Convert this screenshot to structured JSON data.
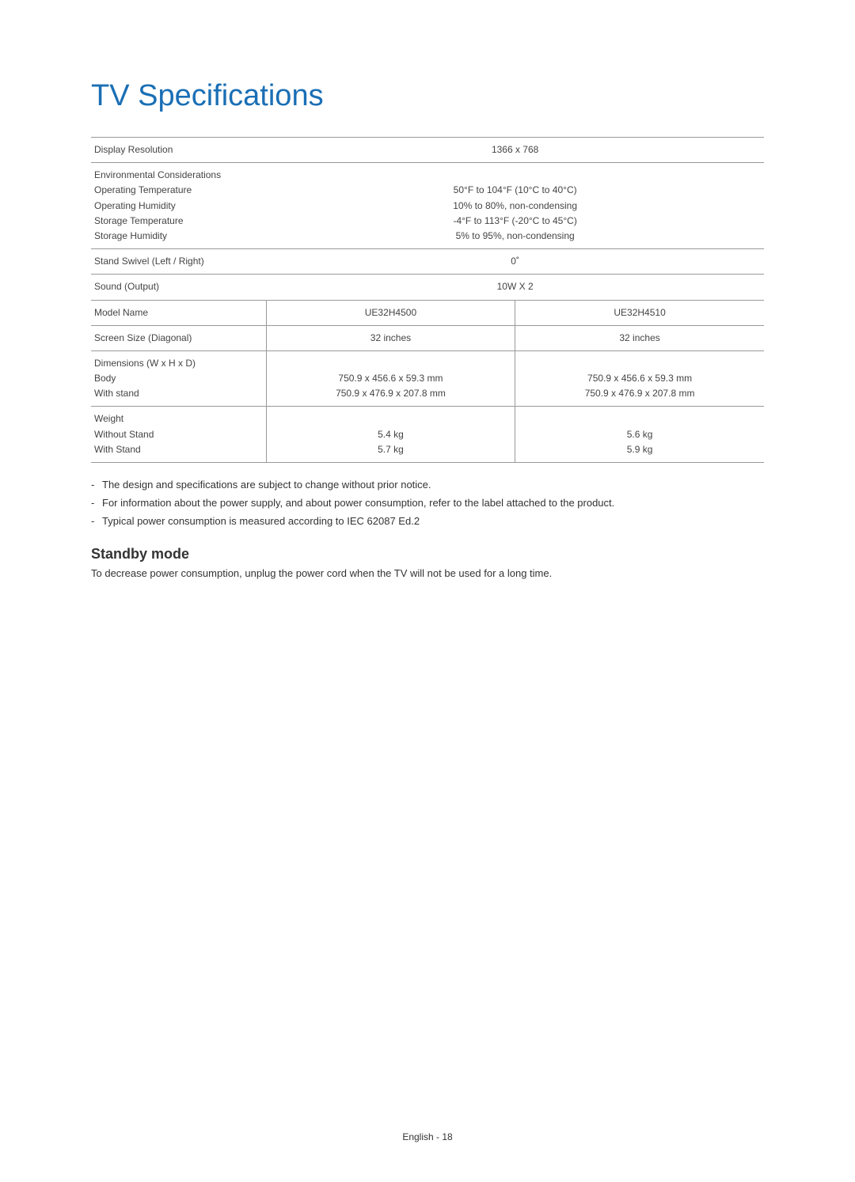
{
  "title": "TV Specifications",
  "table": {
    "rows": [
      {
        "type": "single",
        "label": "Display Resolution",
        "value": "1366 x 768"
      },
      {
        "type": "env",
        "labels": [
          "Environmental Considerations",
          "Operating Temperature",
          "Operating Humidity",
          "Storage Temperature",
          "Storage Humidity"
        ],
        "values": [
          "",
          "50°F to 104°F (10°C to 40°C)",
          "10% to 80%, non-condensing",
          "-4°F to 113°F (-20°C to 45°C)",
          "5% to 95%, non-condensing"
        ]
      },
      {
        "type": "single",
        "label": "Stand Swivel (Left / Right)",
        "value": "0˚"
      },
      {
        "type": "single",
        "label": "Sound (Output)",
        "value": "10W X 2"
      },
      {
        "type": "double",
        "label": "Model Name",
        "value1": "UE32H4500",
        "value2": "UE32H4510"
      },
      {
        "type": "double",
        "label": "Screen Size (Diagonal)",
        "value1": "32 inches",
        "value2": "32 inches"
      },
      {
        "type": "double-multi",
        "labels": [
          "Dimensions (W x H x D)",
          "Body",
          "With stand"
        ],
        "values1": [
          "",
          "750.9 x 456.6 x 59.3 mm",
          "750.9 x 476.9 x 207.8 mm"
        ],
        "values2": [
          "",
          "750.9 x 456.6 x 59.3 mm",
          "750.9 x 476.9 x 207.8 mm"
        ]
      },
      {
        "type": "double-multi",
        "labels": [
          "Weight",
          "Without Stand",
          "With Stand"
        ],
        "values1": [
          "",
          "5.4 kg",
          "5.7 kg"
        ],
        "values2": [
          "",
          "5.6 kg",
          "5.9 kg"
        ]
      }
    ]
  },
  "notes": [
    "The design and specifications are subject to change without prior notice.",
    "For information about the power supply, and about power consumption, refer to the label attached to the product.",
    "Typical power consumption is measured according to IEC 62087 Ed.2"
  ],
  "standby": {
    "heading": "Standby mode",
    "text": "To decrease power consumption, unplug the power cord when the TV will not be used for a long time."
  },
  "footer": "English - 18"
}
